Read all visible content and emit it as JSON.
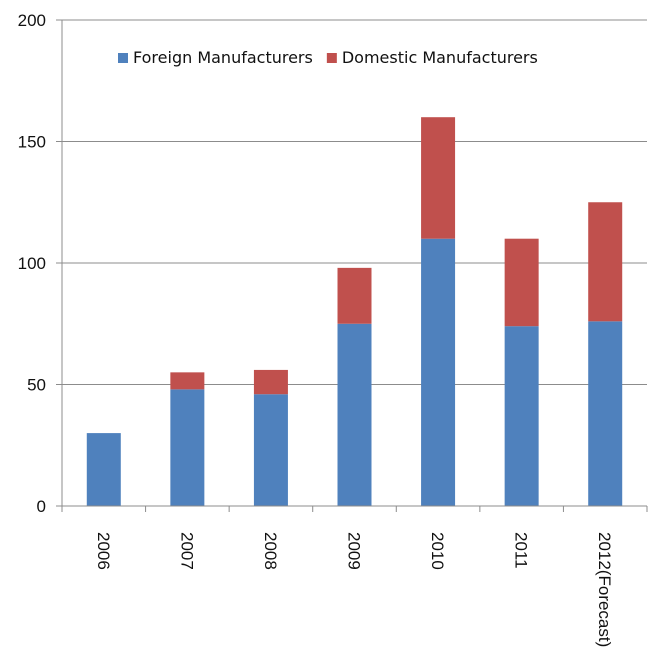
{
  "chart_data": {
    "type": "bar",
    "stacked": true,
    "categories": [
      "2006",
      "2007",
      "2008",
      "2009",
      "2010",
      "2011",
      "2012(Forecast)"
    ],
    "series": [
      {
        "name": "Foreign Manufacturers",
        "values": [
          30,
          48,
          46,
          75,
          110,
          74,
          76
        ],
        "color": "#4f81bd"
      },
      {
        "name": "Domestic Manufacturers",
        "values": [
          0,
          7,
          10,
          23,
          50,
          36,
          49
        ],
        "color": "#c0504d"
      }
    ],
    "ylim": [
      0,
      200
    ],
    "yticks": [
      "0",
      "50",
      "100",
      "150",
      "200"
    ],
    "grid": true,
    "legend_position": "top-center",
    "x_tick_rotation": "vertical"
  }
}
